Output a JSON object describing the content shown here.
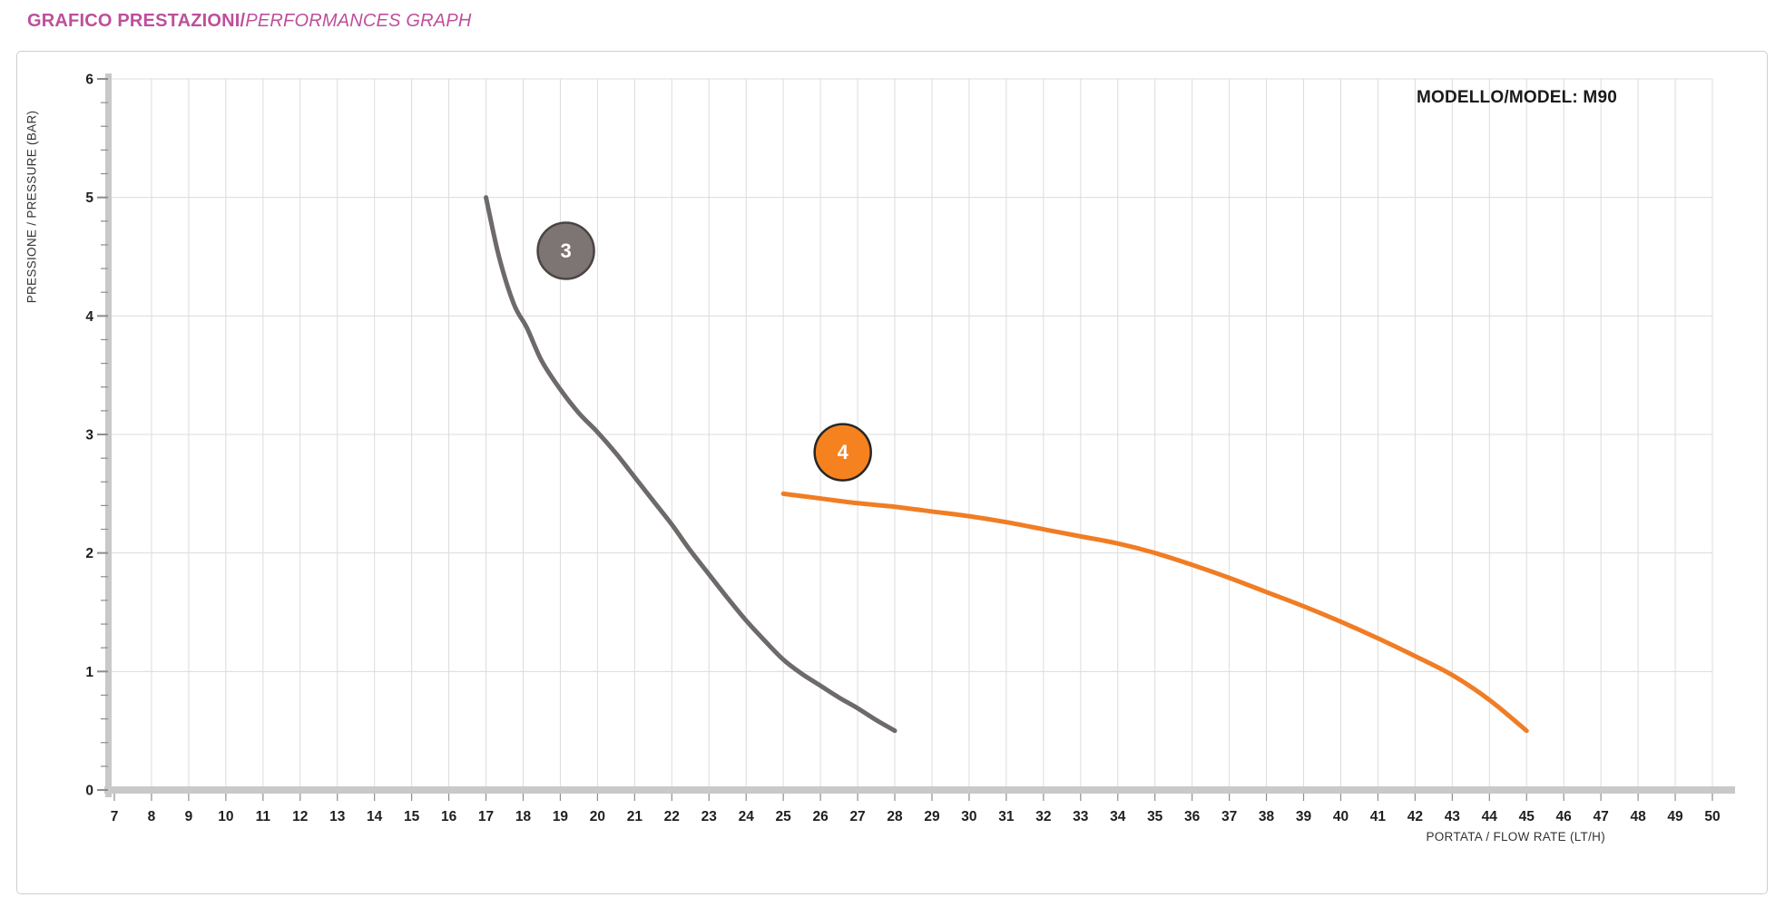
{
  "header": {
    "title_bold": "GRAFICO PRESTAZIONI/",
    "title_italic": "PERFORMANCES GRAPH",
    "title_color": "#be4f9b"
  },
  "chart": {
    "model_label": "MODELLO/MODEL: M90",
    "xlabel": "PORTATA / FLOW RATE (LT/H)",
    "ylabel": "PRESSIONE / PRESSURE (BAR)"
  },
  "colors": {
    "grid": "#dcdcdc",
    "axis_band": "#c9c9c9",
    "tick_mark": "#8c8c8c",
    "series3": "#6e6a69",
    "series4": "#f07d24"
  },
  "chart_data": {
    "type": "line",
    "title": "",
    "xlabel": "PORTATA / FLOW RATE (LT/H)",
    "ylabel": "PRESSIONE / PRESSURE (BAR)",
    "xlim": [
      7,
      50
    ],
    "ylim": [
      0,
      6
    ],
    "x_ticks": [
      7,
      8,
      9,
      10,
      11,
      12,
      13,
      14,
      15,
      16,
      17,
      18,
      19,
      20,
      21,
      22,
      23,
      24,
      25,
      26,
      27,
      28,
      29,
      30,
      31,
      32,
      33,
      34,
      35,
      36,
      37,
      38,
      39,
      40,
      41,
      42,
      43,
      44,
      45,
      46,
      47,
      48,
      49,
      50
    ],
    "y_ticks": [
      0,
      1,
      2,
      3,
      4,
      5,
      6
    ],
    "y_minor_step": 0.2,
    "grid": "major",
    "legend": "none",
    "annotations": [
      {
        "text": "MODELLO/MODEL: M90",
        "position": "top-right"
      }
    ],
    "series": [
      {
        "name": "3",
        "color": "#6e6a69",
        "badge": {
          "x": 19.15,
          "y": 4.55,
          "fill": "#7d7573",
          "border": "#4a4443",
          "text": "3"
        },
        "points": [
          [
            17,
            5.0
          ],
          [
            17.35,
            4.5
          ],
          [
            17.75,
            4.1
          ],
          [
            18.1,
            3.9
          ],
          [
            18.5,
            3.62
          ],
          [
            19,
            3.38
          ],
          [
            19.5,
            3.18
          ],
          [
            20,
            3.02
          ],
          [
            20.5,
            2.84
          ],
          [
            21,
            2.64
          ],
          [
            21.5,
            2.44
          ],
          [
            22,
            2.24
          ],
          [
            22.5,
            2.02
          ],
          [
            23,
            1.82
          ],
          [
            23.5,
            1.62
          ],
          [
            24,
            1.43
          ],
          [
            24.5,
            1.26
          ],
          [
            25,
            1.1
          ],
          [
            25.5,
            0.98
          ],
          [
            26,
            0.88
          ],
          [
            26.5,
            0.78
          ],
          [
            27,
            0.69
          ],
          [
            27.5,
            0.59
          ],
          [
            28,
            0.5
          ]
        ]
      },
      {
        "name": "4",
        "color": "#f07d24",
        "badge": {
          "x": 26.6,
          "y": 2.85,
          "fill": "#f5821f",
          "border": "#262626",
          "text": "4"
        },
        "points": [
          [
            25,
            2.5
          ],
          [
            26,
            2.46
          ],
          [
            27,
            2.42
          ],
          [
            28,
            2.39
          ],
          [
            29,
            2.35
          ],
          [
            30,
            2.31
          ],
          [
            31,
            2.26
          ],
          [
            32,
            2.2
          ],
          [
            33,
            2.14
          ],
          [
            34,
            2.08
          ],
          [
            35,
            2.0
          ],
          [
            36,
            1.9
          ],
          [
            37,
            1.79
          ],
          [
            38,
            1.67
          ],
          [
            39,
            1.55
          ],
          [
            40,
            1.42
          ],
          [
            41,
            1.28
          ],
          [
            42,
            1.13
          ],
          [
            43,
            0.97
          ],
          [
            44,
            0.76
          ],
          [
            45,
            0.5
          ]
        ]
      }
    ]
  }
}
